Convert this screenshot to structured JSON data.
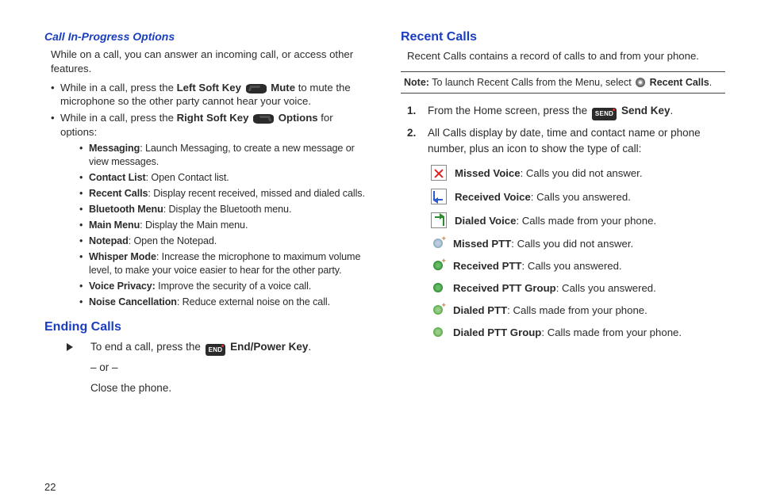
{
  "colors": {
    "heading_blue": "#1a3ec0",
    "body_text": "#2b2b2b",
    "rule": "#444444",
    "missed_red": "#d22222",
    "received_blue": "#2a5bd0",
    "dialed_green": "#2f8a2f"
  },
  "page_number": "22",
  "left": {
    "h1": "Call In-Progress Options",
    "intro": "While on a call, you can answer an incoming call, or access other features.",
    "b1_pre": "While in a call, press the ",
    "b1_key": "Left Soft Key",
    "b1_mute": " Mute",
    "b1_post": " to mute the microphone so the other party cannot hear your voice.",
    "b2_pre": "While in a call, press the ",
    "b2_key": "Right Soft Key",
    "b2_opt": " Options",
    "b2_post": " for options:",
    "opts": [
      {
        "t": "Messaging",
        "d": ": Launch Messaging, to create a new message or view messages."
      },
      {
        "t": "Contact List",
        "d": ": Open Contact list."
      },
      {
        "t": "Recent Calls",
        "d": ": Display recent received, missed and dialed calls."
      },
      {
        "t": "Bluetooth Menu",
        "d": ": Display the Bluetooth menu."
      },
      {
        "t": "Main Menu",
        "d": ": Display the Main menu."
      },
      {
        "t": "Notepad",
        "d": ": Open the Notepad."
      },
      {
        "t": "Whisper Mode",
        "d": ": Increase the microphone to maximum volume level, to make your voice easier to hear for the other party."
      },
      {
        "t": "Voice Privacy:",
        "d": " Improve the security of a voice call."
      },
      {
        "t": "Noise Cancellation",
        "d": ": Reduce external noise on the call."
      }
    ],
    "h2": "Ending Calls",
    "end_pre": "To end a call, press the ",
    "end_key_label": "END",
    "end_key_name": " End/Power Key",
    "end_post": ".",
    "or": "– or –",
    "close": "Close the phone."
  },
  "right": {
    "h1": "Recent Calls",
    "intro": "Recent Calls contains a record of calls to and from your phone.",
    "note_label": "Note:",
    "note_body_pre": " To launch Recent Calls from the Menu, select ",
    "note_body_post": " Recent Calls",
    "note_body_end": ".",
    "step1_pre": "From the Home screen, press the ",
    "step1_key_label": "SEND",
    "step1_key_name": " Send Key",
    "step1_post": ".",
    "step2": "All Calls display by date, time and contact name or phone number, plus an icon to show the type of call:",
    "types": [
      {
        "icon": "missed-voice-icon",
        "t": "Missed Voice",
        "d": ": Calls you did not answer."
      },
      {
        "icon": "received-voice-icon",
        "t": "Received Voice",
        "d": ": Calls you answered."
      },
      {
        "icon": "dialed-voice-icon",
        "t": "Dialed Voice",
        "d": ": Calls made from your phone."
      },
      {
        "icon": "missed-ptt-icon",
        "t": "Missed PTT",
        "d": ": Calls you did not answer."
      },
      {
        "icon": "received-ptt-icon",
        "t": "Received PTT",
        "d": ": Calls you answered."
      },
      {
        "icon": "received-ptt-group-icon",
        "t": "Received PTT Group",
        "d": ": Calls you answered."
      },
      {
        "icon": "dialed-ptt-icon",
        "t": "Dialed PTT",
        "d": ": Calls made from your phone."
      },
      {
        "icon": "dialed-ptt-group-icon",
        "t": "Dialed PTT Group",
        "d": ": Calls made from your phone."
      }
    ]
  }
}
